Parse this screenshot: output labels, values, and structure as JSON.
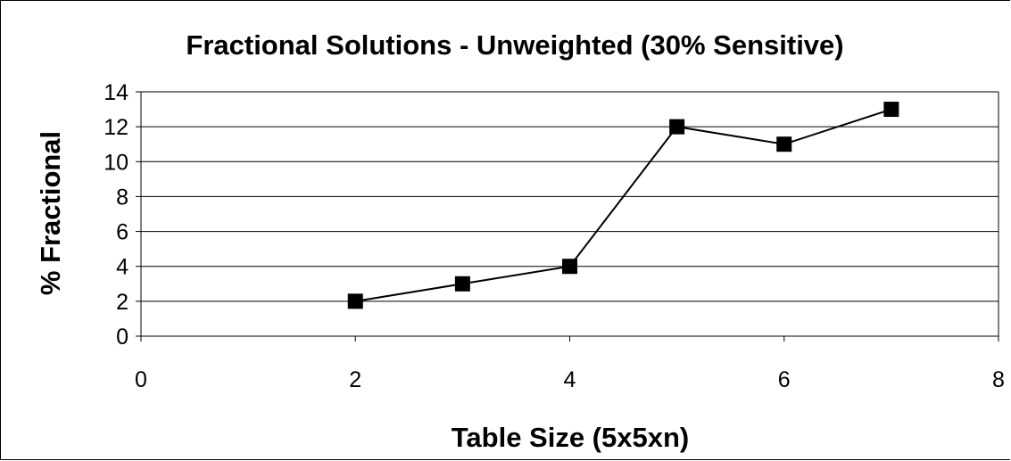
{
  "chart_data": {
    "type": "scatter",
    "title": "Fractional Solutions - Unweighted (30% Sensitive)",
    "xlabel": "Table Size (5x5xn)",
    "ylabel": "% Fractional",
    "xlim": [
      0,
      8
    ],
    "ylim": [
      0,
      14
    ],
    "x_ticks": [
      0,
      2,
      4,
      6,
      8
    ],
    "y_ticks": [
      0,
      2,
      4,
      6,
      8,
      10,
      12,
      14
    ],
    "grid": "horizontal major gridlines",
    "legend": "none",
    "series": [
      {
        "x": [
          2,
          3,
          4,
          5,
          6,
          7
        ],
        "y": [
          2,
          3,
          4,
          12,
          11,
          13
        ],
        "marker": "square",
        "color": "#000000",
        "connected": true
      }
    ]
  }
}
